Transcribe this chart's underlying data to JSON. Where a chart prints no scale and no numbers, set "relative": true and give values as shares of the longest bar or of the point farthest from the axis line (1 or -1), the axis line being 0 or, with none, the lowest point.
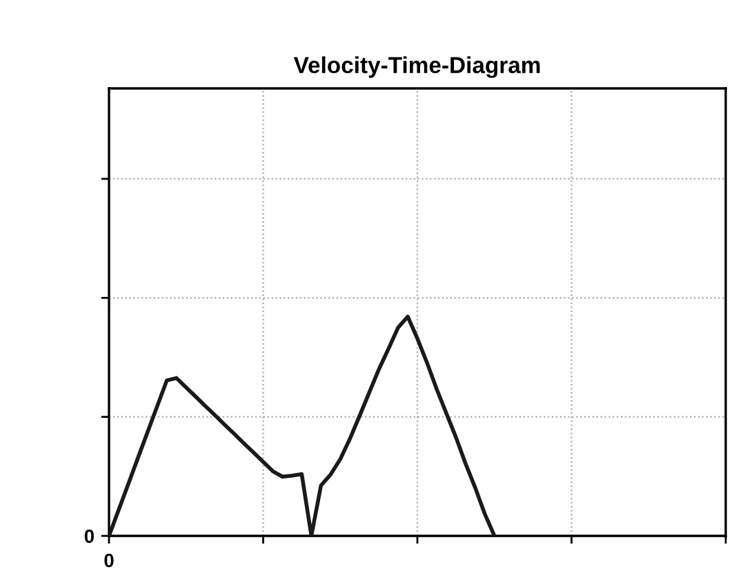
{
  "chart_data": {
    "type": "line",
    "title": "Velocity-Time-Diagram",
    "relative": true,
    "categories": [
      null,
      null,
      null,
      null,
      null,
      null,
      null,
      null,
      null,
      null,
      null,
      null,
      null,
      null,
      null,
      null,
      null,
      null,
      null,
      null,
      null,
      null,
      null,
      null,
      null,
      null,
      null,
      null,
      null,
      null,
      null,
      null,
      null,
      null,
      null,
      null,
      null,
      null,
      null,
      null,
      null,
      null,
      null,
      null,
      null,
      null,
      null,
      null,
      null,
      null,
      null,
      null,
      null,
      null,
      null,
      null,
      null,
      null,
      null,
      null,
      null,
      null,
      null,
      null,
      null
    ],
    "series": [
      {
        "color": "#1a1a1a",
        "values": [
          0,
          0.118,
          0.236,
          0.355,
          0.473,
          0.591,
          0.709,
          0.72,
          0.677,
          0.635,
          0.592,
          0.55,
          0.507,
          0.465,
          0.422,
          0.38,
          0.338,
          0.295,
          0.27,
          0.275,
          0.282,
          0,
          0.23,
          0.28,
          0.35,
          0.443,
          0.547,
          0.653,
          0.759,
          0.853,
          0.95,
          1.0,
          0.9,
          0.79,
          0.67,
          0.56,
          0.45,
          0.33,
          0.22,
          0.1,
          0,
          null,
          null,
          null,
          null,
          null,
          null,
          null,
          null,
          null,
          null,
          null,
          null,
          null,
          null,
          null,
          null,
          null,
          null,
          null,
          null,
          null,
          null,
          null,
          null
        ]
      }
    ],
    "annotations": [
      "0",
      "0"
    ],
    "grid": true,
    "marker": "none",
    "line_style": "solid"
  }
}
